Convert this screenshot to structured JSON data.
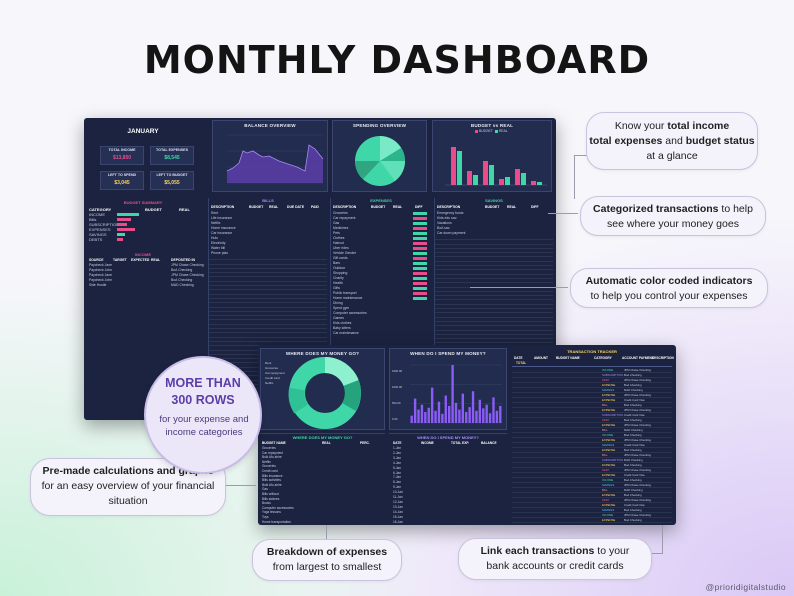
{
  "title": "MONTHLY DASHBOARD",
  "top_dashboard": {
    "month": "JANUARY",
    "kpis": [
      {
        "label": "TOTAL INCOME",
        "value": "$13,850",
        "color": "#e84d8a"
      },
      {
        "label": "TOTAL EXPENSES",
        "value": "$8,545",
        "color": "#3fd7a8"
      },
      {
        "label": "LEFT TO SPEND",
        "value": "$3,045",
        "color": "#ffd45a"
      },
      {
        "label": "LEFT TO BUDGET",
        "value": "$5,055",
        "color": "#ffd45a"
      }
    ],
    "balance_overview": "BALANCE OVERVIEW",
    "spending_overview": "SPENDING OVERVIEW",
    "budget_vs_real": "BUDGET vs REAL",
    "budget_legend": [
      "BUDGET",
      "REAL"
    ],
    "budget_summary": "BUDGET SUMMARY",
    "summary_headers": [
      "CATEGORY",
      "BUDGET",
      "REAL"
    ],
    "summary_rows": [
      "INCOME",
      "Bills",
      "SUBSCRIPTIONS",
      "EXPENSES",
      "SAVINGS",
      "DEBTS"
    ],
    "income_title": "INCOME",
    "income_headers": [
      "SOURCE",
      "TARGET",
      "EXPECTED",
      "REAL",
      "DEPOSITED IN"
    ],
    "income_rows": [
      {
        "source": "Paycheck Jane",
        "acct": "JPM Chase Checking"
      },
      {
        "source": "Paycheck John",
        "acct": "BoA Checking"
      },
      {
        "source": "Paycheck Jane",
        "acct": "JPM Chase Checking"
      },
      {
        "source": "Paycheck John",
        "acct": "BoA Checking"
      },
      {
        "source": "Side Hustle",
        "acct": "MAD Checking"
      }
    ],
    "bills_title": "BILLS",
    "bills_headers": [
      "DESCRIPTION",
      "BUDGET",
      "REAL",
      "DUE DATE",
      "PAID"
    ],
    "bills_rows": [
      "Rent",
      "Life insurance",
      "Netflix",
      "Home insurance",
      "Car insurance",
      "Hulu",
      "Electricity",
      "Water bill",
      "Phone plan"
    ],
    "expenses_title": "EXPENSES",
    "expenses_headers": [
      "DESCRIPTION",
      "BUDGET",
      "REAL",
      "DIFF"
    ],
    "expenses_rows": [
      "Groceries",
      "Car repayment",
      "Gas",
      "Medicines",
      "Pets",
      "Clothes",
      "Haircut",
      "Uber rides",
      "Vehicle Gender",
      "Gift cards",
      "Bars",
      "Outdoor",
      "Shopping",
      "Charity",
      "Health",
      "Gifts",
      "Public transport",
      "Home maintenance",
      "Dining",
      "Spent gym",
      "Computer accessories",
      "Games",
      "Kids clothes",
      "Baby sitters",
      "Car maintenance"
    ],
    "savings_title": "SAVINGS",
    "savings_headers": [
      "DESCRIPTION",
      "BUDGET",
      "REAL",
      "DIFF"
    ],
    "savings_rows": [
      "Emergency funds",
      "Kids edu sav.",
      "Vacations",
      "BoA sav.",
      "Car down payment"
    ]
  },
  "bottom_dashboard": {
    "where_title": "WHERE DOES MY MONEY GO?",
    "when_title": "WHEN DO I SPEND MY MONEY?",
    "tracker_title": "TRANSACTION TRACKER",
    "tracker_headers": [
      "DATE",
      "AMOUNT",
      "BUDGET NAME",
      "CATEGORY",
      "ACCOUNT PAYMENT",
      "DESCRIPTION"
    ],
    "tracker_total": "TOTAL",
    "where_table_title": "WHERE DOES MY MONEY GO?",
    "where_table_headers": [
      "BUDGET NAME",
      "REAL",
      "PERC."
    ],
    "where_rows": [
      "Groceries",
      "Car repayment",
      "Bulk Afo-shire",
      "Netflix",
      "Groceries",
      "Credit card",
      "Bills insurance",
      "Bills activities",
      "Bulk Afo-shire",
      "Gas",
      "Bills without",
      "Bills sicknes",
      "Books",
      "Computer accessories",
      "Yoga lessons",
      "Toys",
      "Home transportation"
    ],
    "when_table_title": "WHEN DO I SPEND MY MONEY?",
    "when_table_headers": [
      "DATE",
      "INCOME",
      "TOTAL EXP.",
      "BALANCE"
    ],
    "when_rows": [
      "1-Jan",
      "2-Jan",
      "3-Jan",
      "4-Jan",
      "5-Jan",
      "6-Jan",
      "7-Jan",
      "8-Jan",
      "9-Jan",
      "10-Jan",
      "11-Jan",
      "12-Jan",
      "13-Jan",
      "14-Jan",
      "15-Jan",
      "16-Jan"
    ],
    "tracker_categories": [
      "INCOME",
      "SUBSCRIPTION",
      "DEBT",
      "EXPENSE",
      "SAVINGS",
      "EXPENSE",
      "EXPENSE",
      "BILL",
      "EXPENSE",
      "SUBSCRIPTION",
      "DEBT",
      "EXPENSE",
      "BILL",
      "INCOME",
      "EXPENSE",
      "SAVINGS",
      "EXPENSE",
      "BILL",
      "SUBSCRIPTION",
      "EXPENSE",
      "DEBT",
      "EXPENSE",
      "INCOME",
      "SAVINGS",
      "BILL",
      "EXPENSE",
      "DEBT",
      "EXPENSE",
      "SAVINGS",
      "INCOME",
      "EXPENSE"
    ],
    "tracker_accounts": [
      "JPM Chase Checking",
      "BoA Checking",
      "JPM Chase Checking",
      "BoA Checking",
      "MAD Checking",
      "JPM Chase Checking",
      "Credit Card Visa",
      "BoA Checking",
      "JPM Chase Checking",
      "Credit Card Visa",
      "BoA Checking",
      "JPM Chase Checking",
      "MAD Checking",
      "BoA Checking",
      "JPM Chase Checking",
      "Credit Card Visa",
      "BoA Checking",
      "JPM Chase Checking",
      "MAD Checking",
      "BoA Checking",
      "JPM Chase Checking",
      "Credit Card Visa",
      "BoA Checking",
      "JPM Chase Checking",
      "MAD Checking",
      "BoA Checking",
      "JPM Chase Checking",
      "Credit Card Visa",
      "BoA Checking",
      "JPM Chase Checking",
      "BoA Checking"
    ],
    "donut_legend": [
      "Rent",
      "Groceries",
      "Car repayment",
      "Credit card",
      "Netflix"
    ],
    "when_bars": [
      12,
      40,
      22,
      30,
      18,
      25,
      58,
      20,
      35,
      15,
      45,
      28,
      95,
      33,
      22,
      48,
      18,
      26,
      52,
      20,
      38,
      24,
      30,
      16,
      42,
      20,
      28
    ],
    "when_ylabels": [
      "1500.00",
      "1000.00",
      "500.00",
      "0.00"
    ]
  },
  "callouts": {
    "c1_pre": "Know your ",
    "c1_b1": "total income",
    "c1_b2": "total expenses",
    "c1_mid": " and ",
    "c1_b3": "budget status",
    "c1_post": " at a glance",
    "c2_b": "Categorized transactions",
    "c2_rest": " to help see where your money goes",
    "c3_b": "Automatic color coded indicators",
    "c3_rest": "to help you control your expenses",
    "c4_b1": "Pre-made calculations and graphs",
    "c4_rest": " for an easy overview of your financial situation",
    "c5_b": "Breakdown of expenses",
    "c5_rest": "from largest to smallest",
    "c6_b": "Link each transactions",
    "c6_rest": " to your bank accounts or credit cards"
  },
  "bubble": {
    "big1": "MORE THAN",
    "big2": "300 ROWS",
    "small": "for your expense and income categories"
  },
  "credit": "@prioridigitalstudio",
  "colors": {
    "pink": "#e84d8a",
    "green": "#3fd7a8",
    "purple": "#8b5cf6",
    "yellow": "#ffd45a",
    "navy": "#1b2340"
  }
}
